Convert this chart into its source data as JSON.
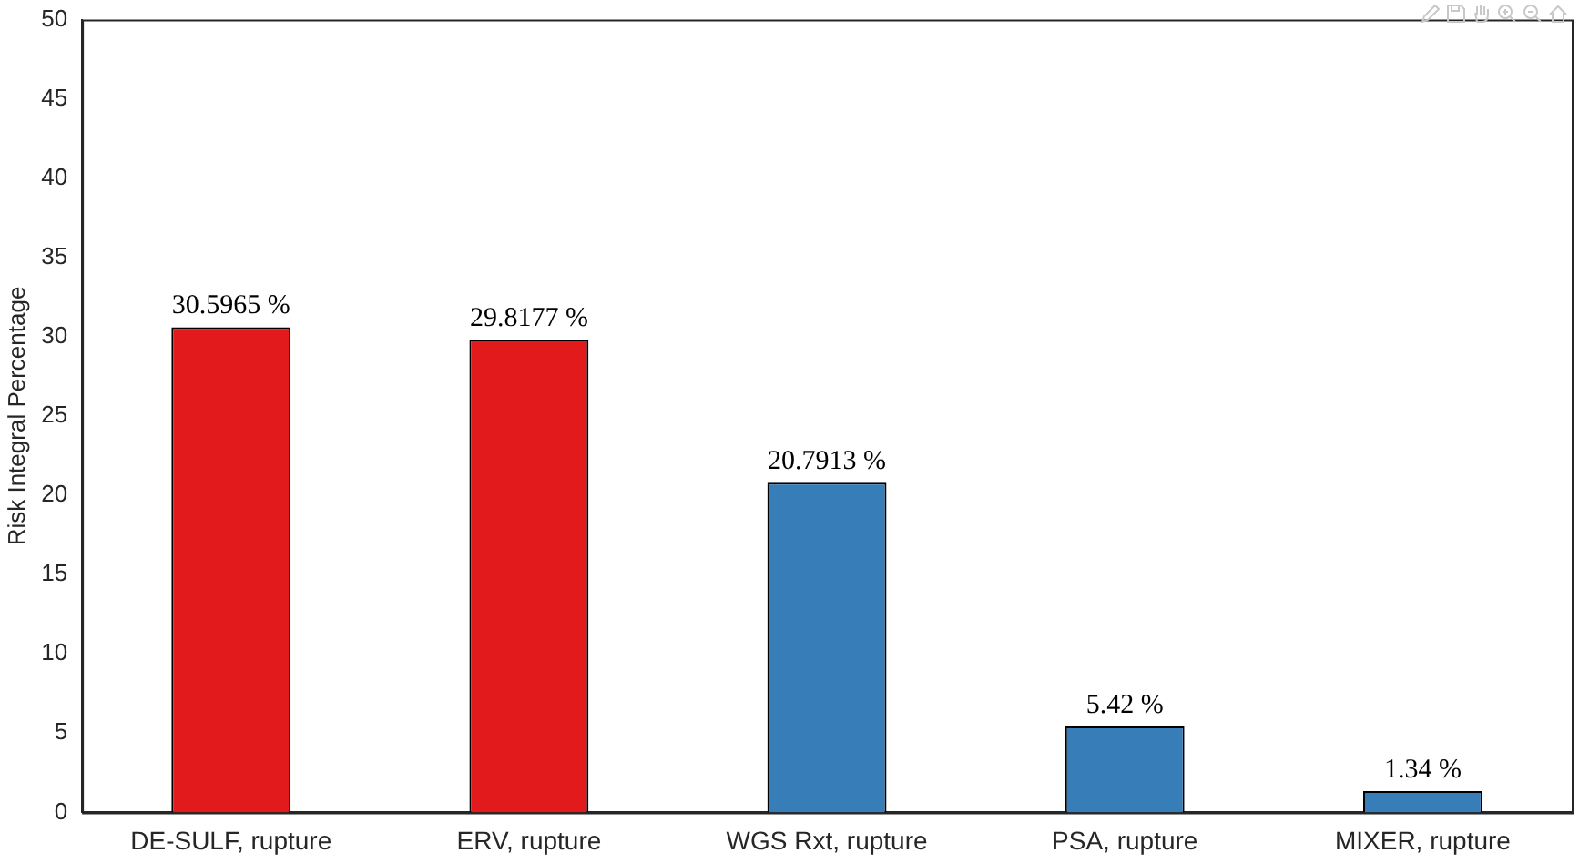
{
  "chart_data": {
    "type": "bar",
    "ylabel": "Risk Integral Percentage",
    "categories": [
      "DE-SULF, rupture",
      "ERV, rupture",
      "WGS Rxt, rupture",
      "PSA, rupture",
      "MIXER, rupture"
    ],
    "values": [
      30.5965,
      29.8177,
      20.7913,
      5.42,
      1.34
    ],
    "colors": [
      "#e31a1c",
      "#e31a1c",
      "#377eb8",
      "#377eb8",
      "#377eb8"
    ],
    "value_labels": [
      "30.5965 %",
      "29.8177 %",
      "20.7913 %",
      "5.42 %",
      "1.34 %"
    ],
    "ylim": [
      0,
      50
    ],
    "yticks": [
      0,
      5,
      10,
      15,
      20,
      25,
      30,
      35,
      40,
      45,
      50
    ],
    "grid": false,
    "legend": false
  }
}
